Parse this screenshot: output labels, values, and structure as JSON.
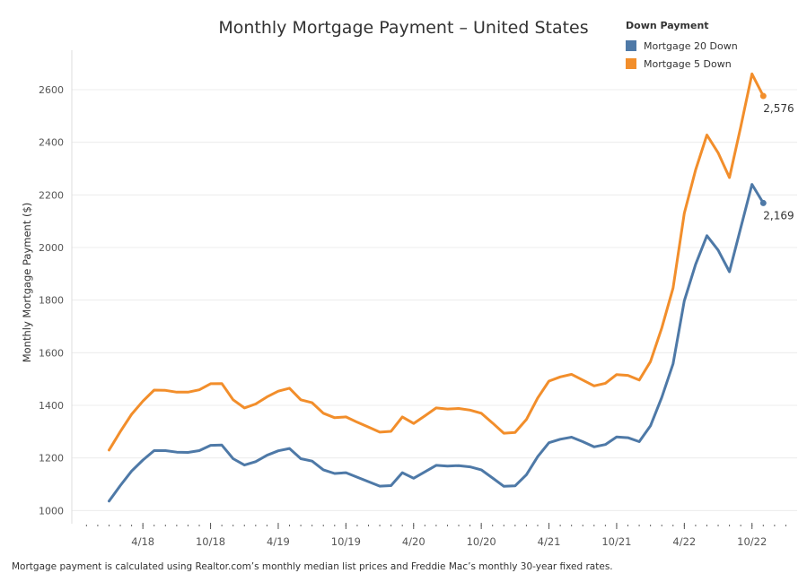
{
  "chart_data": {
    "type": "line",
    "title": "Monthly Mortgage Payment – United States",
    "ylabel": "Monthly Mortgage Payment ($)",
    "xlabel": "",
    "ylim": [
      950,
      2750
    ],
    "y_ticks": [
      1000,
      1200,
      1400,
      1600,
      1800,
      2000,
      2200,
      2400,
      2600
    ],
    "y_tick_labels": [
      "1000",
      "1200",
      "1400",
      "1600",
      "1800",
      "2000",
      "2200",
      "2400",
      "2600"
    ],
    "x_ticks": [
      {
        "label": "4/18",
        "month": 4
      },
      {
        "label": "10/18",
        "month": 10
      },
      {
        "label": "4/19",
        "month": 16
      },
      {
        "label": "10/19",
        "month": 22
      },
      {
        "label": "4/20",
        "month": 28
      },
      {
        "label": "10/20",
        "month": 34
      },
      {
        "label": "4/21",
        "month": 40
      },
      {
        "label": "10/21",
        "month": 46
      },
      {
        "label": "4/22",
        "month": 52
      },
      {
        "label": "10/22",
        "month": 58
      }
    ],
    "x_range": [
      -2.3,
      62
    ],
    "x": [
      1,
      2,
      3,
      4,
      5,
      6,
      7,
      8,
      9,
      10,
      11,
      12,
      13,
      14,
      15,
      16,
      17,
      18,
      19,
      20,
      21,
      22,
      23,
      24,
      25,
      26,
      27,
      28,
      29,
      30,
      31,
      32,
      33,
      34,
      35,
      36,
      37,
      38,
      39,
      40,
      41,
      42,
      43,
      44,
      45,
      46,
      47,
      48,
      49,
      50,
      51,
      52,
      53,
      54,
      55,
      56,
      57,
      58,
      59
    ],
    "legend_title": "Down Payment",
    "legend_position": "top-right",
    "grid": true,
    "series": [
      {
        "name": "Mortgage 20 Down",
        "color": "#4e79a7",
        "values": [
          1036,
          1095,
          1150,
          1192,
          1228,
          1228,
          1222,
          1221,
          1228,
          1248,
          1249,
          1197,
          1173,
          1186,
          1210,
          1227,
          1236,
          1197,
          1188,
          1155,
          1141,
          1144,
          1127,
          1110,
          1093,
          1095,
          1144,
          1123,
          1147,
          1172,
          1169,
          1171,
          1166,
          1155,
          1124,
          1092,
          1094,
          1136,
          1205,
          1258,
          1271,
          1279,
          1262,
          1242,
          1251,
          1280,
          1277,
          1262,
          1322,
          1430,
          1558,
          1797,
          1936,
          2045,
          1990,
          1908,
          2075,
          2240,
          2169
        ],
        "end_label": "2,169"
      },
      {
        "name": "Mortgage 5 Down",
        "color": "#f28e2b",
        "values": [
          1230,
          1300,
          1366,
          1416,
          1458,
          1457,
          1450,
          1450,
          1459,
          1482,
          1483,
          1421,
          1390,
          1405,
          1432,
          1454,
          1465,
          1421,
          1410,
          1370,
          1353,
          1356,
          1336,
          1317,
          1298,
          1301,
          1356,
          1331,
          1360,
          1390,
          1386,
          1388,
          1382,
          1370,
          1333,
          1294,
          1297,
          1346,
          1428,
          1492,
          1508,
          1518,
          1496,
          1474,
          1484,
          1517,
          1514,
          1496,
          1566,
          1694,
          1846,
          2130,
          2295,
          2428,
          2360,
          2266,
          2459,
          2660,
          2576
        ],
        "end_label": "2,576"
      }
    ],
    "footnote": "Mortgage payment is calculated using Realtor.com’s monthly median list prices and Freddie Mac’s monthly 30-year fixed rates."
  }
}
